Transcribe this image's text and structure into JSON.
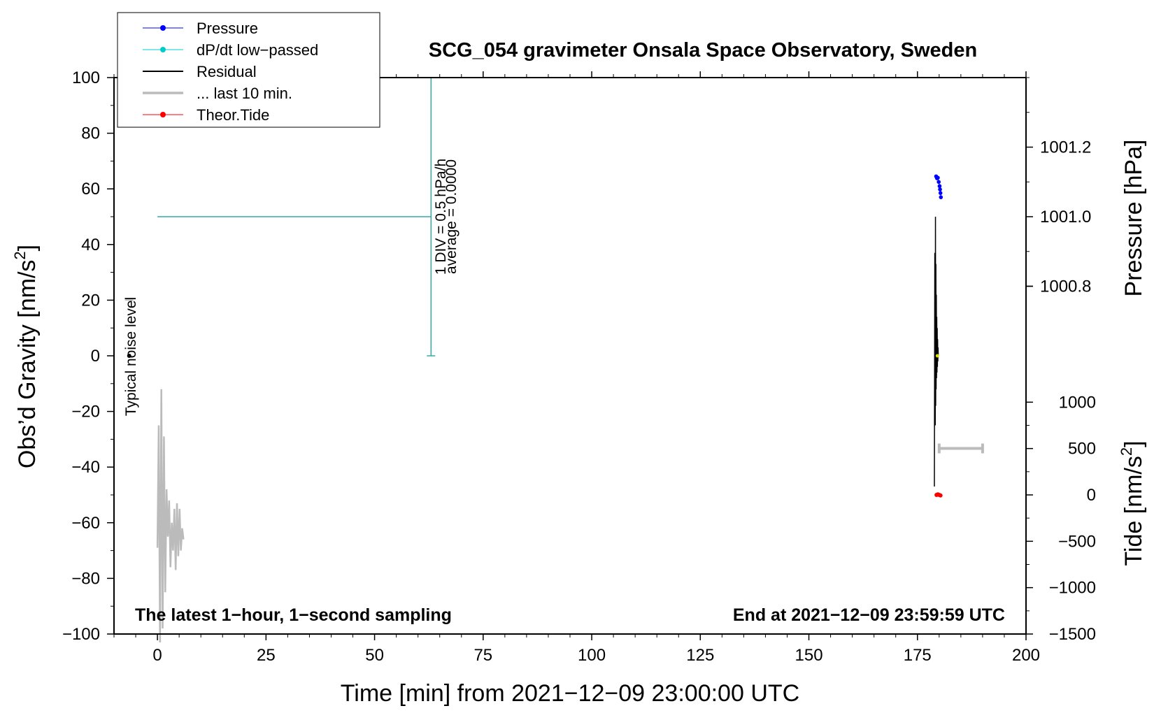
{
  "chart_data": {
    "type": "line",
    "title": "SCG_054 gravimeter Onsala Space Observatory, Sweden",
    "xlabel": "Time [min] from 2021−12−09 23:00:00 UTC",
    "ylabel": "Obs’d Gravity [nm/s",
    "ylabel_sup": "2",
    "ylabel_close": "]",
    "y2_pressure_label": "Pressure [hPa]",
    "y2_tide_label": "Tide [nm/s",
    "y2_tide_sup": "2",
    "y2_tide_close": "]",
    "xlim": [
      -10,
      200
    ],
    "ylim": [
      -100,
      100
    ],
    "x_ticks": [
      0,
      25,
      50,
      75,
      100,
      125,
      150,
      175,
      200
    ],
    "x_tick_labels": [
      "0",
      "25",
      "50",
      "75",
      "100",
      "125",
      "150",
      "175",
      "200"
    ],
    "y_ticks": [
      -100,
      -80,
      -60,
      -40,
      -20,
      0,
      20,
      40,
      60,
      80,
      100
    ],
    "y_tick_labels": [
      "−100",
      "−80",
      "−60",
      "−40",
      "−20",
      "0",
      "20",
      "40",
      "60",
      "80",
      "100"
    ],
    "pressure_ticks": [
      {
        "value": 1001.2,
        "label": "1001.2",
        "gravity_equiv": 75
      },
      {
        "value": 1001.0,
        "label": "1001.0",
        "gravity_equiv": 50
      },
      {
        "value": 1000.8,
        "label": "1000.8",
        "gravity_equiv": 25
      }
    ],
    "tide_ticks": [
      {
        "value": 1000,
        "label": "1000",
        "gravity_equiv": -16.67
      },
      {
        "value": 500,
        "label": "500",
        "gravity_equiv": -33.33
      },
      {
        "value": 0,
        "label": "0",
        "gravity_equiv": -50
      },
      {
        "value": -500,
        "label": "−500",
        "gravity_equiv": -66.67
      },
      {
        "value": -1000,
        "label": "−1000",
        "gravity_equiv": -83.33
      },
      {
        "value": -1500,
        "label": "−1500",
        "gravity_equiv": -100
      }
    ],
    "corner_left": "The latest 1−hour, 1−second sampling",
    "corner_right": "End at 2021−12−09 23:59:59 UTC",
    "noise_label": "Typical noise level",
    "scale_label_1": "1 DIV = 0.5 hPa/h",
    "scale_label_2": "average = 0.0000",
    "legend": [
      {
        "label": "Pressure",
        "color": "#0000ff",
        "marker": "dot"
      },
      {
        "label": "dP/dt low−passed",
        "color": "#00cccc",
        "marker": "dot"
      },
      {
        "label": "Residual",
        "color": "#000000",
        "marker": "line"
      },
      {
        "label": "... last 10 min.",
        "color": "#bbbbbb",
        "marker": "thick-line"
      },
      {
        "label": "Theor.Tide",
        "color": "#ff0000",
        "marker": "dot"
      }
    ],
    "legend_position": "top-left",
    "series": {
      "pressure": {
        "color": "#0000ff",
        "x": [
          179.3,
          179.5,
          179.7,
          179.9,
          180.1,
          180.2,
          180.3,
          180.4
        ],
        "y": [
          64.5,
          63.8,
          64.0,
          62.5,
          61.0,
          59.8,
          58.5,
          57.0
        ]
      },
      "dpdt": {
        "color": "#33aaaa",
        "hline": {
          "y": 50,
          "x0": 0,
          "x1": 63
        },
        "vline": {
          "x": 63,
          "y0": 0,
          "y1": 100
        }
      },
      "residual": {
        "color": "#000000",
        "x": [
          178.9,
          179.0,
          179.1,
          179.15,
          179.2,
          179.25,
          179.3,
          179.35,
          179.4,
          179.45,
          179.5,
          179.55,
          179.6,
          179.65,
          179.7,
          179.75,
          179.8
        ],
        "y": [
          -47,
          37,
          -25,
          50,
          -18,
          33,
          -12,
          22,
          -8,
          14,
          -6,
          10,
          -4,
          6,
          -2,
          3,
          0
        ]
      },
      "last10": {
        "color": "#bbbbbb",
        "x": [
          0.0,
          0.3,
          0.6,
          0.9,
          1.2,
          1.5,
          1.8,
          2.1,
          2.4,
          2.7,
          3.0,
          3.3,
          3.6,
          3.9,
          4.2,
          4.5,
          4.8,
          5.1,
          5.4,
          5.7,
          6.0
        ],
        "y": [
          -69,
          -25,
          -104,
          -12,
          -98,
          -29,
          -85,
          -48,
          -65,
          -52,
          -76,
          -60,
          -70,
          -55,
          -77,
          -53,
          -72,
          -55,
          -70,
          -62,
          -66
        ]
      },
      "tide": {
        "color": "#ff0000",
        "x": [
          179.4,
          179.7,
          180.0,
          180.3
        ],
        "y": [
          -50,
          -49.8,
          -50,
          -50.2
        ]
      },
      "noise_point": {
        "x": -6.5,
        "y": 0,
        "color": "#000000"
      },
      "tide_range_bar": {
        "x0": 180,
        "x1": 190,
        "y": -33.3,
        "color": "#bbbbbb"
      },
      "yellow_marker": {
        "x": 179.6,
        "y": 0,
        "color": "#dddd00"
      }
    },
    "grid": false
  }
}
